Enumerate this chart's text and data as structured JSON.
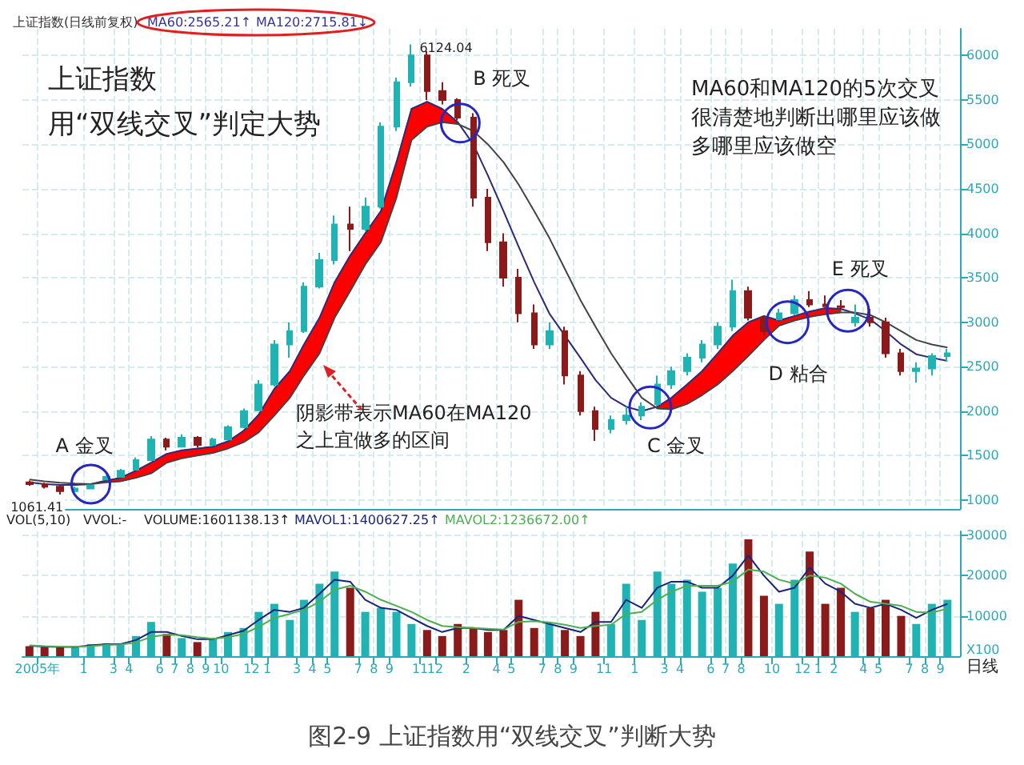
{
  "chart_data": [
    {
      "type": "candlestick",
      "title": "上证指数(日线前复权)",
      "x": [
        "2005-09-15",
        "2005-10-15",
        "2005-11-15",
        "2005-12-15",
        "2006-01-15",
        "2006-02-15",
        "2006-03-15",
        "2006-04-15",
        "2006-05-15",
        "2006-06-15",
        "2006-07-15",
        "2006-08-15",
        "2006-09-15",
        "2006-10-15",
        "2006-11-15",
        "2006-12-15",
        "2007-01-15",
        "2007-02-15",
        "2007-03-15",
        "2007-04-15",
        "2007-05-15",
        "2007-06-15",
        "2007-07-15",
        "2007-08-15",
        "2007-09-15",
        "2007-10-15",
        "2007-11-15",
        "2007-12-15",
        "2008-01-15",
        "2008-02-15",
        "2008-03-15",
        "2008-04-15",
        "2008-05-15",
        "2008-06-15",
        "2008-07-15",
        "2008-08-15",
        "2008-09-15",
        "2008-10-15",
        "2008-11-15",
        "2008-12-15",
        "2009-01-15",
        "2009-02-15",
        "2009-03-15",
        "2009-04-15",
        "2009-05-15",
        "2009-06-15",
        "2009-07-15",
        "2009-08-15",
        "2009-09-15",
        "2009-10-15",
        "2009-11-15",
        "2009-12-15",
        "2010-01-15",
        "2010-02-15",
        "2010-03-15",
        "2010-04-15",
        "2010-05-15",
        "2010-06-15",
        "2010-07-15",
        "2010-08-15",
        "2010-09-15"
      ],
      "ohlc": [
        [
          1200,
          1220,
          1160,
          1180
        ],
        [
          1180,
          1195,
          1130,
          1150
        ],
        [
          1150,
          1160,
          1061.41,
          1100
        ],
        [
          1100,
          1150,
          1090,
          1130
        ],
        [
          1130,
          1170,
          1120,
          1165
        ],
        [
          1230,
          1280,
          1225,
          1260
        ],
        [
          1260,
          1350,
          1255,
          1330
        ],
        [
          1340,
          1480,
          1335,
          1450
        ],
        [
          1450,
          1720,
          1440,
          1680
        ],
        [
          1680,
          1700,
          1560,
          1600
        ],
        [
          1600,
          1740,
          1590,
          1700
        ],
        [
          1700,
          1720,
          1590,
          1620
        ],
        [
          1620,
          1700,
          1610,
          1680
        ],
        [
          1680,
          1840,
          1670,
          1820
        ],
        [
          1820,
          2030,
          1810,
          2000
        ],
        [
          2010,
          2350,
          2005,
          2300
        ],
        [
          2300,
          2800,
          2280,
          2750
        ],
        [
          2750,
          3000,
          2600,
          2900
        ],
        [
          2900,
          3450,
          2880,
          3400
        ],
        [
          3400,
          3780,
          3380,
          3700
        ],
        [
          3700,
          4200,
          3650,
          4100
        ],
        [
          4100,
          4300,
          3800,
          4050
        ],
        [
          4050,
          4400,
          4020,
          4300
        ],
        [
          4300,
          5250,
          4280,
          5200
        ],
        [
          5200,
          5750,
          5150,
          5700
        ],
        [
          5700,
          6124.04,
          5650,
          6000
        ],
        [
          6000,
          6050,
          5500,
          5600
        ],
        [
          5600,
          5700,
          5450,
          5500
        ],
        [
          5500,
          5520,
          5270,
          5300
        ],
        [
          5300,
          5350,
          4300,
          4400
        ],
        [
          4400,
          4500,
          3800,
          3900
        ],
        [
          3900,
          4000,
          3400,
          3500
        ],
        [
          3500,
          3600,
          3000,
          3100
        ],
        [
          3100,
          3200,
          2700,
          2750
        ],
        [
          2750,
          3000,
          2700,
          2900
        ],
        [
          2900,
          2950,
          2300,
          2400
        ],
        [
          2400,
          2450,
          1950,
          2000
        ],
        [
          2000,
          2050,
          1664,
          1800
        ],
        [
          1800,
          1950,
          1750,
          1900
        ],
        [
          1900,
          2050,
          1850,
          1950
        ],
        [
          1950,
          2100,
          1900,
          2050
        ],
        [
          2080,
          2400,
          2060,
          2300
        ],
        [
          2300,
          2500,
          2250,
          2450
        ],
        [
          2450,
          2650,
          2400,
          2600
        ],
        [
          2600,
          2800,
          2550,
          2750
        ],
        [
          2750,
          3000,
          2700,
          2950
        ],
        [
          2950,
          3478,
          2900,
          3350
        ],
        [
          3350,
          3400,
          3020,
          3050
        ],
        [
          3050,
          3060,
          2850,
          2900
        ],
        [
          3030,
          3150,
          3030,
          3100
        ],
        [
          3100,
          3300,
          3080,
          3250
        ],
        [
          3250,
          3350,
          3170,
          3200
        ],
        [
          3200,
          3300,
          3170,
          3180
        ],
        [
          3180,
          3250,
          3160,
          3170
        ],
        [
          3000,
          3200,
          2950,
          3050
        ],
        [
          3050,
          3150,
          2950,
          3000
        ],
        [
          3000,
          3050,
          2600,
          2650
        ],
        [
          2650,
          2700,
          2400,
          2450
        ],
        [
          2450,
          2550,
          2320,
          2480
        ],
        [
          2480,
          2650,
          2400,
          2620
        ],
        [
          2620,
          2700,
          2560,
          2650
        ]
      ],
      "colors": [
        "#8b1a1a",
        "#8b1a1a",
        "#8b1a1a",
        "#1fb3b3",
        "#1fb3b3",
        "#1fb3b3",
        "#1fb3b3",
        "#1fb3b3",
        "#1fb3b3",
        "#8b1a1a",
        "#1fb3b3",
        "#8b1a1a",
        "#1fb3b3",
        "#1fb3b3",
        "#1fb3b3",
        "#1fb3b3",
        "#1fb3b3",
        "#1fb3b3",
        "#1fb3b3",
        "#1fb3b3",
        "#1fb3b3",
        "#8b1a1a",
        "#1fb3b3",
        "#1fb3b3",
        "#1fb3b3",
        "#1fb3b3",
        "#8b1a1a",
        "#8b1a1a",
        "#8b1a1a",
        "#8b1a1a",
        "#8b1a1a",
        "#8b1a1a",
        "#8b1a1a",
        "#8b1a1a",
        "#1fb3b3",
        "#8b1a1a",
        "#8b1a1a",
        "#8b1a1a",
        "#1fb3b3",
        "#1fb3b3",
        "#1fb3b3",
        "#1fb3b3",
        "#1fb3b3",
        "#1fb3b3",
        "#1fb3b3",
        "#1fb3b3",
        "#1fb3b3",
        "#8b1a1a",
        "#8b1a1a",
        "#1fb3b3",
        "#1fb3b3",
        "#8b1a1a",
        "#8b1a1a",
        "#8b1a1a",
        "#1fb3b3",
        "#8b1a1a",
        "#8b1a1a",
        "#8b1a1a",
        "#1fb3b3",
        "#1fb3b3",
        "#1fb3b3"
      ],
      "series": [
        {
          "type": "line",
          "color": "#2b2b7a",
          "values": [
            1200,
            1180,
            1170,
            1170,
            1180,
            1220,
            1250,
            1330,
            1420,
            1520,
            1560,
            1580,
            1600,
            1660,
            1780,
            1960,
            2250,
            2450,
            2750,
            3050,
            3450,
            3750,
            4000,
            4250,
            4800,
            5400,
            5480,
            5400,
            5250,
            5000,
            4650,
            4250,
            3850,
            3450,
            3100,
            2850,
            2600,
            2350,
            2150,
            2050,
            2000,
            2050,
            2150,
            2300,
            2450,
            2650,
            2850,
            3000,
            3070,
            3020,
            3070,
            3120,
            3160,
            3150,
            3100,
            3030,
            2900,
            2750,
            2640,
            2600,
            2565.21
          ],
          "upper": [
            null,
            null,
            null,
            null,
            1180,
            1220,
            1250,
            1330,
            1420,
            1520,
            1560,
            1580,
            1600,
            1660,
            1780,
            1960,
            2250,
            2450,
            2750,
            3050,
            3450,
            3750,
            4000,
            4250,
            4800,
            5400,
            5480,
            5400,
            5250,
            null,
            null,
            null,
            null,
            null,
            null,
            null,
            null,
            null,
            null,
            null,
            null,
            2050,
            2150,
            2300,
            2450,
            2650,
            2850,
            3000,
            3070,
            3020,
            3070,
            3120,
            3160,
            3150,
            null,
            null,
            null,
            null,
            null,
            null,
            null
          ],
          "lower": [
            null,
            null,
            null,
            null,
            1180,
            1200,
            1210,
            1250,
            1300,
            1420,
            1470,
            1500,
            1530,
            1580,
            1650,
            1760,
            1950,
            2150,
            2400,
            2650,
            3050,
            3350,
            3650,
            3900,
            4400,
            5050,
            5200,
            5250,
            5230,
            null,
            null,
            null,
            null,
            null,
            null,
            null,
            null,
            null,
            null,
            null,
            null,
            2030,
            2020,
            2080,
            2180,
            2300,
            2450,
            2620,
            2800,
            2960,
            3020,
            3060,
            3090,
            3110,
            null,
            null,
            null,
            null,
            null,
            null,
            null
          ]
        },
        {
          "type": "line",
          "color": "#444444",
          "values": [
            1230,
            1210,
            1195,
            1185,
            1180,
            1200,
            1210,
            1250,
            1300,
            1420,
            1470,
            1500,
            1530,
            1580,
            1650,
            1760,
            1950,
            2150,
            2400,
            2650,
            3050,
            3350,
            3650,
            3900,
            4400,
            5050,
            5200,
            5250,
            5230,
            5150,
            5000,
            4800,
            4550,
            4250,
            3950,
            3600,
            3250,
            2950,
            2650,
            2400,
            2150,
            2030,
            2020,
            2080,
            2180,
            2300,
            2450,
            2620,
            2800,
            2960,
            3020,
            3060,
            3090,
            3110,
            3110,
            3080,
            3000,
            2900,
            2800,
            2750,
            2715.81
          ]
        }
      ],
      "xlim": [
        "2005-09-01",
        "2010-10-10"
      ],
      "xticks": [
        {
          "value": "2005-10-01",
          "label": null
        },
        {
          "value": "2006-01-01",
          "label": null
        },
        {
          "value": "2006-03-01",
          "label": null
        },
        {
          "value": "2006-04-01",
          "label": null
        },
        {
          "value": "2006-06-01",
          "label": null
        },
        {
          "value": "2006-07-01",
          "label": null
        },
        {
          "value": "2006-08-01",
          "label": null
        },
        {
          "value": "2006-09-01",
          "label": null
        },
        {
          "value": "2006-10-01",
          "label": null
        },
        {
          "value": "2006-12-01",
          "label": null
        },
        {
          "value": "2007-01-01",
          "label": null
        },
        {
          "value": "2007-03-01",
          "label": null
        },
        {
          "value": "2007-04-01",
          "label": null
        },
        {
          "value": "2007-05-01",
          "label": null
        },
        {
          "value": "2007-07-01",
          "label": null
        },
        {
          "value": "2007-08-01",
          "label": null
        },
        {
          "value": "2007-09-01",
          "label": null
        },
        {
          "value": "2007-11-01",
          "label": null
        },
        {
          "value": "2007-12-01",
          "label": null
        },
        {
          "value": "2008-02-01",
          "label": null
        },
        {
          "value": "2008-04-01",
          "label": null
        },
        {
          "value": "2008-05-01",
          "label": null
        },
        {
          "value": "2008-07-01",
          "label": null
        },
        {
          "value": "2008-08-01",
          "label": null
        },
        {
          "value": "2008-09-01",
          "label": null
        },
        {
          "value": "2008-11-01",
          "label": null
        },
        {
          "value": "2009-01-01",
          "label": null
        },
        {
          "value": "2009-03-01",
          "label": null
        },
        {
          "value": "2009-04-01",
          "label": null
        },
        {
          "value": "2009-06-01",
          "label": null
        },
        {
          "value": "2009-07-01",
          "label": null
        },
        {
          "value": "2009-08-01",
          "label": null
        },
        {
          "value": "2009-10-01",
          "label": null
        },
        {
          "value": "2009-12-01",
          "label": null
        },
        {
          "value": "2010-01-01",
          "label": null
        },
        {
          "value": "2010-02-01",
          "label": null
        },
        {
          "value": "2010-04-01",
          "label": null
        },
        {
          "value": "2010-05-01",
          "label": null
        },
        {
          "value": "2010-07-01",
          "label": null
        },
        {
          "value": "2010-08-01",
          "label": null
        },
        {
          "value": "2010-09-01",
          "label": null
        }
      ],
      "ylim": [
        900,
        6300
      ],
      "yticks": [
        1000,
        1500,
        2000,
        2500,
        3000,
        3500,
        4000,
        4500,
        5000,
        5500,
        6000
      ],
      "grid": true,
      "tick_labels": "y",
      "annotations": [
        "MA60:2565.21↑",
        "MA120:2715.81↓",
        "上证指数",
        "用“双线交叉”判定大势",
        {
          "text": "B 死叉",
          "x": "2008-01-20",
          "y": 5240
        },
        "MA60和MA120的5次交叉很清楚地判断出哪里应该做多哪里应该做空",
        {
          "text": "A 金叉",
          "x": "2006-01-15",
          "y": 1180
        },
        "阴影带表示MA60在MA120之上宜做多的区间",
        {
          "text": "C 金叉",
          "x": "2009-02-01",
          "y": 2040
        },
        {
          "text": "D 粘合",
          "x": "2009-11-01",
          "y": 3000
        },
        {
          "text": "E 死叉",
          "x": "2010-03-01",
          "y": 3130
        },
        {
          "text": "6124.04",
          "x": "2007-10-15",
          "y": 6124.04
        },
        {
          "text": "1061.41",
          "x": "2005-11-15",
          "y": 1061.41
        }
      ]
    },
    {
      "type": "bar",
      "x": [
        "2005-09-15",
        "2005-10-15",
        "2005-11-15",
        "2005-12-15",
        "2006-01-15",
        "2006-02-15",
        "2006-03-15",
        "2006-04-15",
        "2006-05-15",
        "2006-06-15",
        "2006-07-15",
        "2006-08-15",
        "2006-09-15",
        "2006-10-15",
        "2006-11-15",
        "2006-12-15",
        "2007-01-15",
        "2007-02-15",
        "2007-03-15",
        "2007-04-15",
        "2007-05-15",
        "2007-06-15",
        "2007-07-15",
        "2007-08-15",
        "2007-09-15",
        "2007-10-15",
        "2007-11-15",
        "2007-12-15",
        "2008-01-15",
        "2008-02-15",
        "2008-03-15",
        "2008-04-15",
        "2008-05-15",
        "2008-06-15",
        "2008-07-15",
        "2008-08-15",
        "2008-09-15",
        "2008-10-15",
        "2008-11-15",
        "2008-12-15",
        "2009-01-15",
        "2009-02-15",
        "2009-03-15",
        "2009-04-15",
        "2009-05-15",
        "2009-06-15",
        "2009-07-15",
        "2009-08-15",
        "2009-09-15",
        "2009-10-15",
        "2009-11-15",
        "2009-12-15",
        "2010-01-15",
        "2010-02-15",
        "2010-03-15",
        "2010-04-15",
        "2010-05-15",
        "2010-06-15",
        "2010-07-15",
        "2010-08-15",
        "2010-09-15"
      ],
      "series": [
        {
          "values": [
            2500,
            2300,
            2200,
            2400,
            3000,
            3200,
            2800,
            5000,
            8500,
            5500,
            4500,
            3500,
            4500,
            6000,
            7000,
            11000,
            13000,
            9000,
            14000,
            18000,
            21000,
            17000,
            11000,
            12000,
            11000,
            8000,
            6500,
            5000,
            8000,
            7000,
            6000,
            6500,
            14000,
            7000,
            8000,
            6500,
            5000,
            11000,
            8000,
            18000,
            9000,
            21000,
            18000,
            19000,
            16000,
            17000,
            23000,
            29000,
            15000,
            13000,
            19000,
            26000,
            13000,
            17000,
            11000,
            12000,
            14000,
            10000,
            8000,
            13000,
            14000
          ],
          "colors": [
            "#8b1a1a",
            "#8b1a1a",
            "#8b1a1a",
            "#1fb3b3",
            "#1fb3b3",
            "#1fb3b3",
            "#1fb3b3",
            "#1fb3b3",
            "#1fb3b3",
            "#8b1a1a",
            "#1fb3b3",
            "#8b1a1a",
            "#1fb3b3",
            "#1fb3b3",
            "#1fb3b3",
            "#1fb3b3",
            "#1fb3b3",
            "#1fb3b3",
            "#1fb3b3",
            "#1fb3b3",
            "#1fb3b3",
            "#8b1a1a",
            "#1fb3b3",
            "#1fb3b3",
            "#1fb3b3",
            "#1fb3b3",
            "#8b1a1a",
            "#8b1a1a",
            "#8b1a1a",
            "#8b1a1a",
            "#8b1a1a",
            "#8b1a1a",
            "#8b1a1a",
            "#8b1a1a",
            "#1fb3b3",
            "#8b1a1a",
            "#8b1a1a",
            "#8b1a1a",
            "#1fb3b3",
            "#1fb3b3",
            "#1fb3b3",
            "#1fb3b3",
            "#1fb3b3",
            "#1fb3b3",
            "#1fb3b3",
            "#1fb3b3",
            "#1fb3b3",
            "#8b1a1a",
            "#8b1a1a",
            "#1fb3b3",
            "#1fb3b3",
            "#8b1a1a",
            "#8b1a1a",
            "#8b1a1a",
            "#1fb3b3",
            "#8b1a1a",
            "#8b1a1a",
            "#8b1a1a",
            "#1fb3b3",
            "#1fb3b3",
            "#1fb3b3"
          ]
        },
        {
          "type": "line",
          "color": "#1a237e",
          "values": [
            2600,
            2400,
            2300,
            2300,
            2700,
            3000,
            3000,
            4000,
            6000,
            6000,
            5000,
            4200,
            4200,
            5200,
            6300,
            9000,
            11500,
            11000,
            12000,
            15500,
            19000,
            18500,
            14000,
            12000,
            11500,
            9500,
            7500,
            6000,
            7000,
            7000,
            6500,
            6500,
            10000,
            9000,
            8000,
            7000,
            6000,
            8500,
            8500,
            14000,
            12000,
            17000,
            18500,
            18500,
            17000,
            17000,
            20000,
            25000,
            20000,
            16000,
            17000,
            22000,
            18000,
            16000,
            13000,
            12000,
            13000,
            11500,
            9500,
            11500,
            13000
          ]
        },
        {
          "type": "line",
          "color": "#4caf50",
          "values": [
            2700,
            2500,
            2400,
            2350,
            2500,
            2800,
            2900,
            3400,
            4800,
            5300,
            5200,
            4700,
            4300,
            4700,
            5500,
            7300,
            9500,
            10500,
            11500,
            13500,
            16500,
            17500,
            16000,
            14000,
            12500,
            11000,
            9000,
            7500,
            7200,
            7000,
            6800,
            6600,
            8500,
            8700,
            8400,
            7800,
            7000,
            7500,
            7800,
            10500,
            11000,
            14000,
            16000,
            17500,
            17500,
            17500,
            18500,
            21500,
            21000,
            19000,
            18000,
            20000,
            19500,
            18000,
            15500,
            13500,
            13000,
            12500,
            11000,
            10800,
            11800
          ]
        }
      ],
      "xlim": [
        "2005-09-01",
        "2010-10-10"
      ],
      "xticks": [
        {
          "value": "2005-10-01",
          "label": "2005年"
        },
        {
          "value": "2006-01-01",
          "label": "1"
        },
        {
          "value": "2006-03-01",
          "label": "3"
        },
        {
          "value": "2006-04-01",
          "label": "4"
        },
        {
          "value": "2006-06-01",
          "label": "6"
        },
        {
          "value": "2006-07-01",
          "label": "7"
        },
        {
          "value": "2006-08-01",
          "label": "8"
        },
        {
          "value": "2006-09-01",
          "label": "9"
        },
        {
          "value": "2006-10-01",
          "label": "10"
        },
        {
          "value": "2006-12-01",
          "label": "12"
        },
        {
          "value": "2007-01-01",
          "label": "1"
        },
        {
          "value": "2007-03-01",
          "label": "3"
        },
        {
          "value": "2007-04-01",
          "label": "4"
        },
        {
          "value": "2007-05-01",
          "label": "5"
        },
        {
          "value": "2007-07-01",
          "label": "7"
        },
        {
          "value": "2007-08-01",
          "label": "8"
        },
        {
          "value": "2007-09-01",
          "label": "9"
        },
        {
          "value": "2007-11-01",
          "label": "11"
        },
        {
          "value": "2007-12-01",
          "label": "12"
        },
        {
          "value": "2008-02-01",
          "label": "2"
        },
        {
          "value": "2008-04-01",
          "label": "4"
        },
        {
          "value": "2008-05-01",
          "label": "5"
        },
        {
          "value": "2008-07-01",
          "label": "7"
        },
        {
          "value": "2008-08-01",
          "label": "8"
        },
        {
          "value": "2008-09-01",
          "label": "9"
        },
        {
          "value": "2008-11-01",
          "label": "11"
        },
        {
          "value": "2009-01-01",
          "label": "1"
        },
        {
          "value": "2009-03-01",
          "label": "3"
        },
        {
          "value": "2009-04-01",
          "label": "4"
        },
        {
          "value": "2009-06-01",
          "label": "6"
        },
        {
          "value": "2009-07-01",
          "label": "7"
        },
        {
          "value": "2009-08-01",
          "label": "8"
        },
        {
          "value": "2009-10-01",
          "label": "10"
        },
        {
          "value": "2009-12-01",
          "label": "12"
        },
        {
          "value": "2010-01-01",
          "label": "1"
        },
        {
          "value": "2010-02-01",
          "label": "2"
        },
        {
          "value": "2010-04-01",
          "label": "4"
        },
        {
          "value": "2010-05-01",
          "label": "5"
        },
        {
          "value": "2010-07-01",
          "label": "7"
        },
        {
          "value": "2010-08-01",
          "label": "8"
        },
        {
          "value": "2010-09-01",
          "label": "9"
        }
      ],
      "ylim": [
        0,
        31000
      ],
      "yticks": [
        10000,
        20000,
        30000
      ],
      "grid": true,
      "annotations": [
        "VOL(5,10)",
        "VVOL:-",
        "VOLUME:1601138.13↑",
        "MAVOL1:1400627.25↑",
        "MAVOL2:1236672.00↑",
        "X100",
        "日线",
        "图2-9 上证指数用“双线交叉”判断大势"
      ]
    }
  ]
}
